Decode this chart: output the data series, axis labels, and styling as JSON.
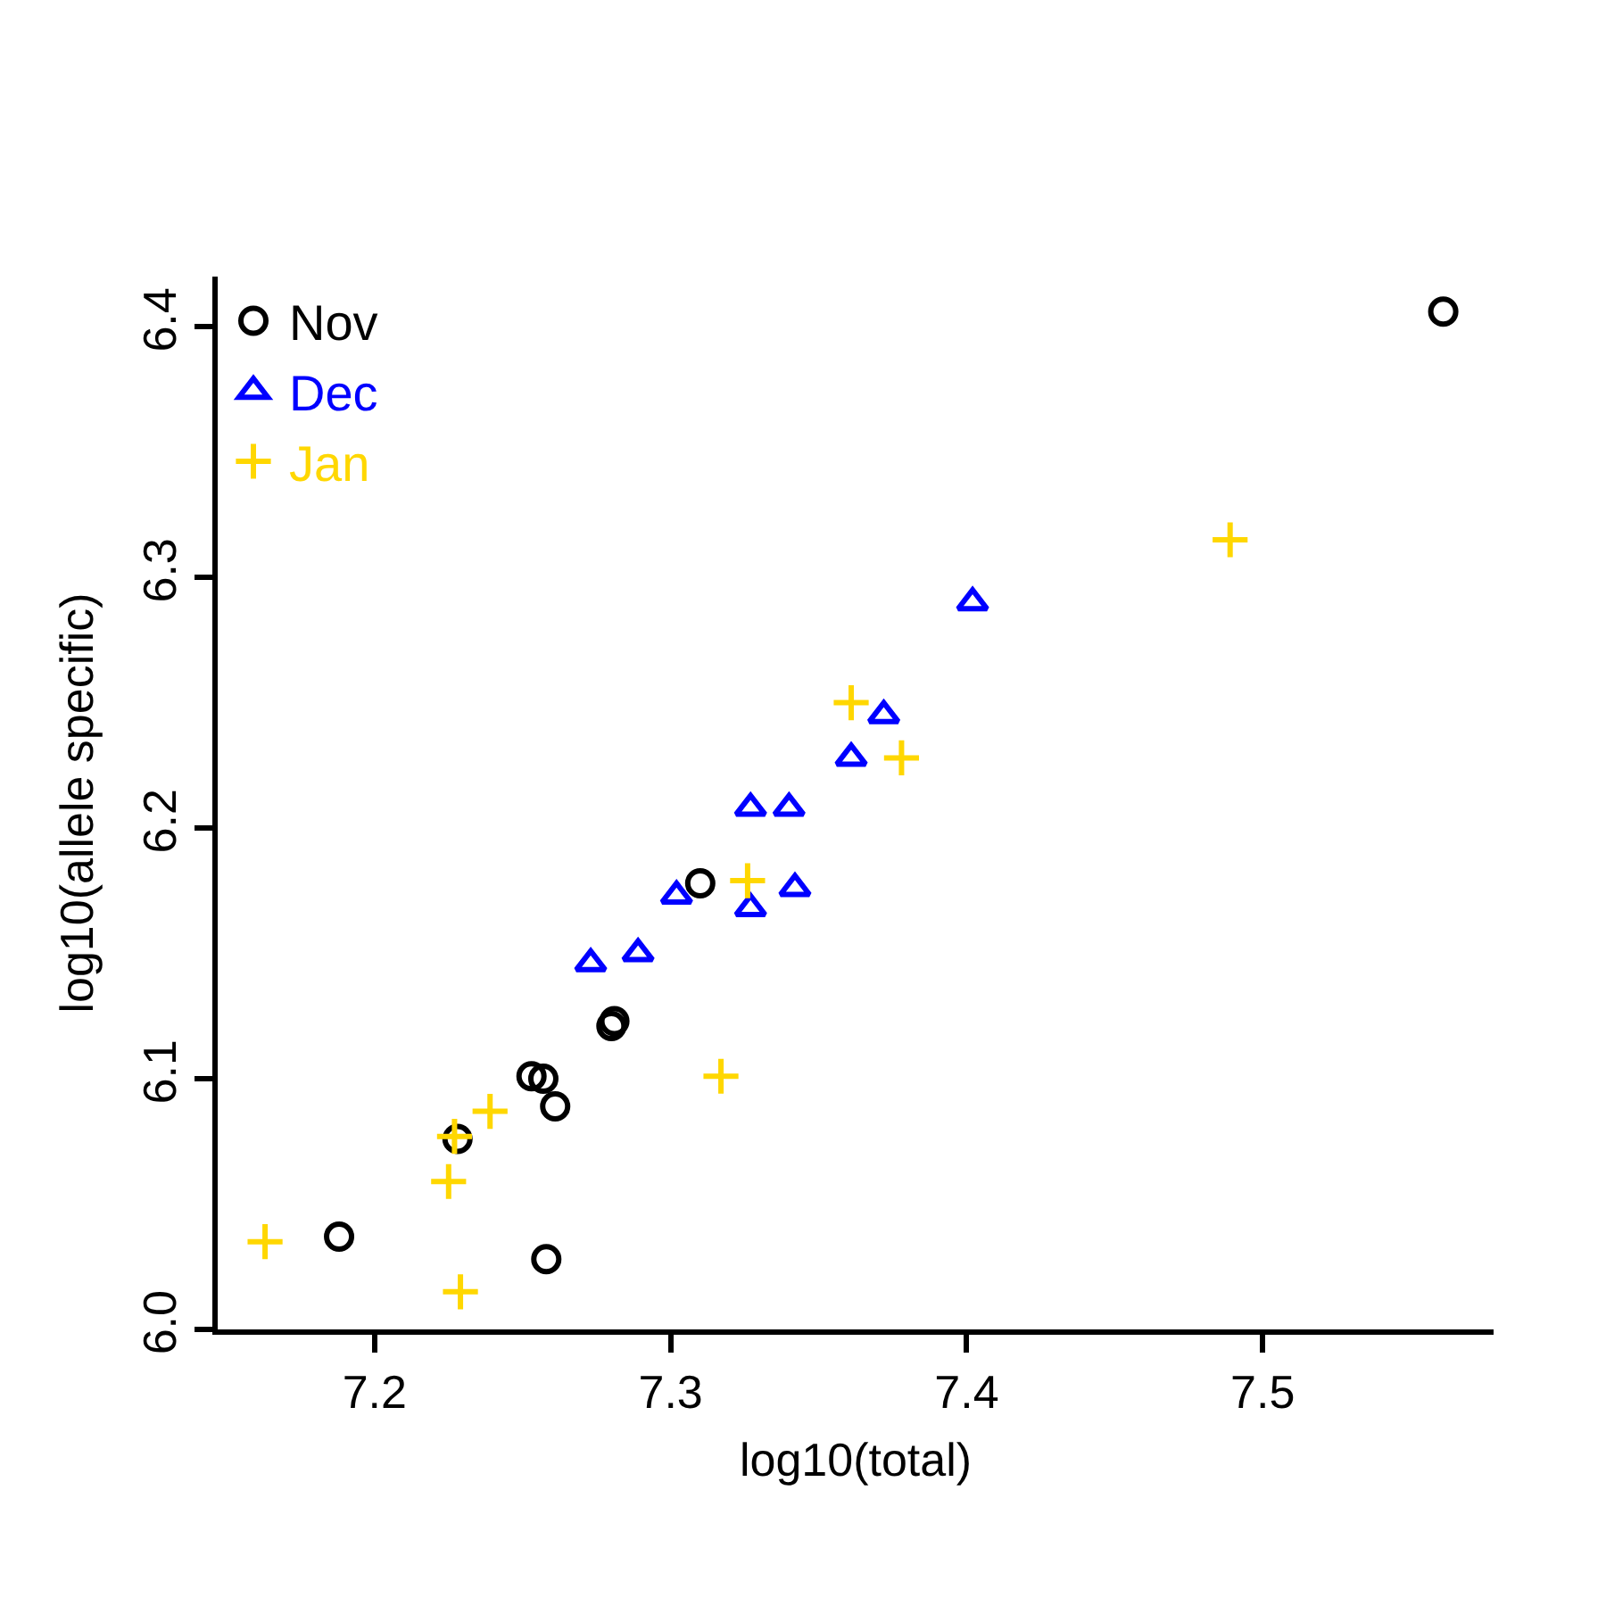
{
  "chart_data": {
    "type": "scatter",
    "xlabel": "log10(total)",
    "ylabel": "log10(allele specific)",
    "xlim": [
      7.147,
      7.578
    ],
    "ylim": [
      6.0,
      6.42
    ],
    "xticks": [
      7.2,
      7.3,
      7.4,
      7.5
    ],
    "yticks": [
      {
        "value": 6.0,
        "label": "6.0"
      },
      6.1,
      6.2,
      6.3,
      6.4
    ],
    "legend": "top left",
    "series": [
      {
        "name": "Nov",
        "color": "#000000",
        "marker": "circle",
        "x": [
          7.561,
          7.31,
          7.281,
          7.28,
          7.253,
          7.257,
          7.261,
          7.228,
          7.188,
          7.258
        ],
        "values": [
          6.406,
          6.178,
          6.123,
          6.121,
          6.101,
          6.1,
          6.089,
          6.076,
          6.037,
          6.028
        ]
      },
      {
        "name": "Dec",
        "color": "#0000ff",
        "marker": "triangle",
        "x": [
          7.402,
          7.372,
          7.361,
          7.327,
          7.34,
          7.342,
          7.327,
          7.302,
          7.289,
          7.273
        ],
        "values": [
          6.29,
          6.245,
          6.228,
          6.208,
          6.208,
          6.176,
          6.168,
          6.173,
          6.15,
          6.146
        ]
      },
      {
        "name": "Jan",
        "color": "#ffd700",
        "marker": "cross",
        "x": [
          7.489,
          7.361,
          7.378,
          7.326,
          7.317,
          7.239,
          7.227,
          7.225,
          7.229,
          7.163
        ],
        "values": [
          6.315,
          6.25,
          6.228,
          6.179,
          6.101,
          6.087,
          6.077,
          6.059,
          6.015,
          6.035
        ]
      }
    ]
  }
}
